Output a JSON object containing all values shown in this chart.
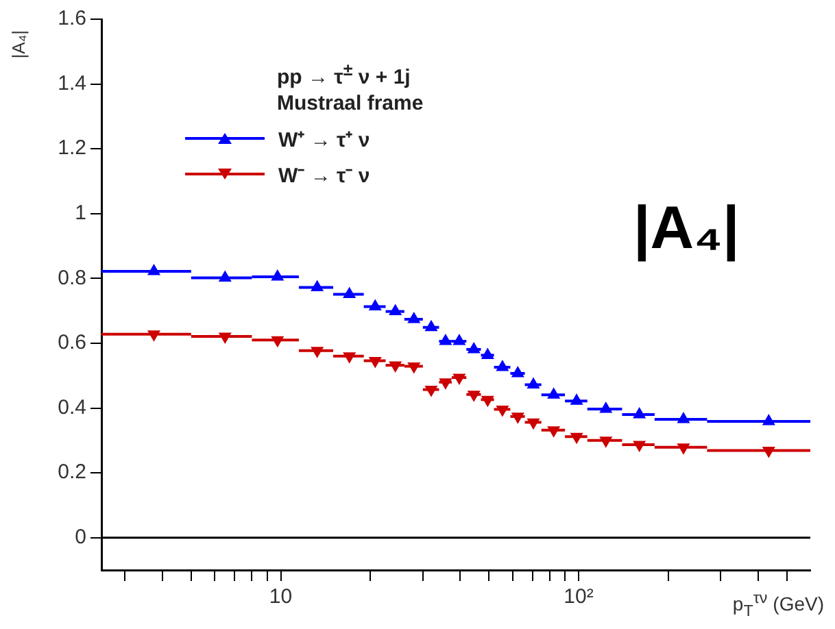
{
  "chart_data": {
    "type": "scatter",
    "x": [
      3.75,
      6.5,
      9.75,
      13.25,
      17,
      20.75,
      24.25,
      28,
      32,
      35.75,
      39.75,
      44.5,
      49.5,
      55.5,
      62.5,
      70.5,
      82.5,
      98.5,
      123.5,
      160,
      225,
      435
    ],
    "series": [
      {
        "name": "W⁺ → τ⁺ ν",
        "color": "#0000ff",
        "values": [
          0.822,
          0.802,
          0.805,
          0.772,
          0.751,
          0.713,
          0.698,
          0.674,
          0.649,
          0.606,
          0.606,
          0.581,
          0.563,
          0.526,
          0.507,
          0.472,
          0.441,
          0.422,
          0.397,
          0.38,
          0.365,
          0.359
        ],
        "xerrors": [
          [
            2.5,
            5
          ],
          [
            5,
            8
          ],
          [
            8,
            11.5
          ],
          [
            11.5,
            15
          ],
          [
            15,
            19
          ],
          [
            19,
            22.5
          ],
          [
            22.5,
            26
          ],
          [
            26,
            30
          ],
          [
            30,
            34
          ],
          [
            34,
            37.5
          ],
          [
            37.5,
            42
          ],
          [
            42,
            47
          ],
          [
            47,
            52
          ],
          [
            52,
            59
          ],
          [
            59,
            66
          ],
          [
            66,
            75
          ],
          [
            75,
            90
          ],
          [
            90,
            107
          ],
          [
            107,
            140
          ],
          [
            140,
            180
          ],
          [
            180,
            270
          ],
          [
            270,
            600
          ]
        ]
      },
      {
        "name": "W⁻ → τ⁻ ν",
        "color": "#cc0000",
        "values": [
          0.628,
          0.621,
          0.61,
          0.577,
          0.56,
          0.546,
          0.532,
          0.529,
          0.457,
          0.48,
          0.494,
          0.442,
          0.426,
          0.396,
          0.374,
          0.356,
          0.332,
          0.312,
          0.3,
          0.287,
          0.279,
          0.269
        ],
        "xerrors": [
          [
            2.5,
            5
          ],
          [
            5,
            8
          ],
          [
            8,
            11.5
          ],
          [
            11.5,
            15
          ],
          [
            15,
            19
          ],
          [
            19,
            22.5
          ],
          [
            22.5,
            26
          ],
          [
            26,
            30
          ],
          [
            30,
            34
          ],
          [
            34,
            37.5
          ],
          [
            37.5,
            42
          ],
          [
            42,
            47
          ],
          [
            47,
            52
          ],
          [
            52,
            59
          ],
          [
            59,
            66
          ],
          [
            66,
            75
          ],
          [
            75,
            90
          ],
          [
            90,
            107
          ],
          [
            107,
            140
          ],
          [
            140,
            180
          ],
          [
            180,
            270
          ],
          [
            270,
            600
          ]
        ]
      }
    ],
    "xlabel": "p$_{T}$$^{τν}$ (GeV)",
    "ylabel": "|A₄|",
    "annotations": [
      "pp → τ$^{±}$ ν + 1j",
      "Mustraal frame",
      "|A₄|"
    ],
    "log": "x",
    "xlim": [
      2.5,
      600
    ],
    "xticks": [
      {
        "value": 3,
        "label": null
      },
      {
        "value": 4,
        "label": null
      },
      {
        "value": 5,
        "label": null
      },
      {
        "value": 6,
        "label": null
      },
      {
        "value": 7,
        "label": null
      },
      {
        "value": 8,
        "label": null
      },
      {
        "value": 9,
        "label": null
      },
      10,
      {
        "value": 20,
        "label": null
      },
      {
        "value": 30,
        "label": null
      },
      {
        "value": 40,
        "label": null
      },
      {
        "value": 50,
        "label": null
      },
      {
        "value": 60,
        "label": null
      },
      {
        "value": 70,
        "label": null
      },
      {
        "value": 80,
        "label": null
      },
      {
        "value": 90,
        "label": null
      },
      {
        "value": 100,
        "label": "10²"
      },
      {
        "value": 200,
        "label": null
      },
      {
        "value": 300,
        "label": null
      },
      {
        "value": 400,
        "label": null
      },
      {
        "value": 500,
        "label": null
      }
    ],
    "ylim": [
      -0.1,
      1.6
    ],
    "yticks": [
      0,
      0.2,
      0.4,
      0.6,
      0.8,
      1,
      1.2,
      1.4,
      1.6
    ],
    "ref_lines": [
      {
        "axis": "y",
        "value": 0,
        "color": "#000000"
      }
    ],
    "marker": "triangle",
    "legend": "top left",
    "grid": false
  }
}
